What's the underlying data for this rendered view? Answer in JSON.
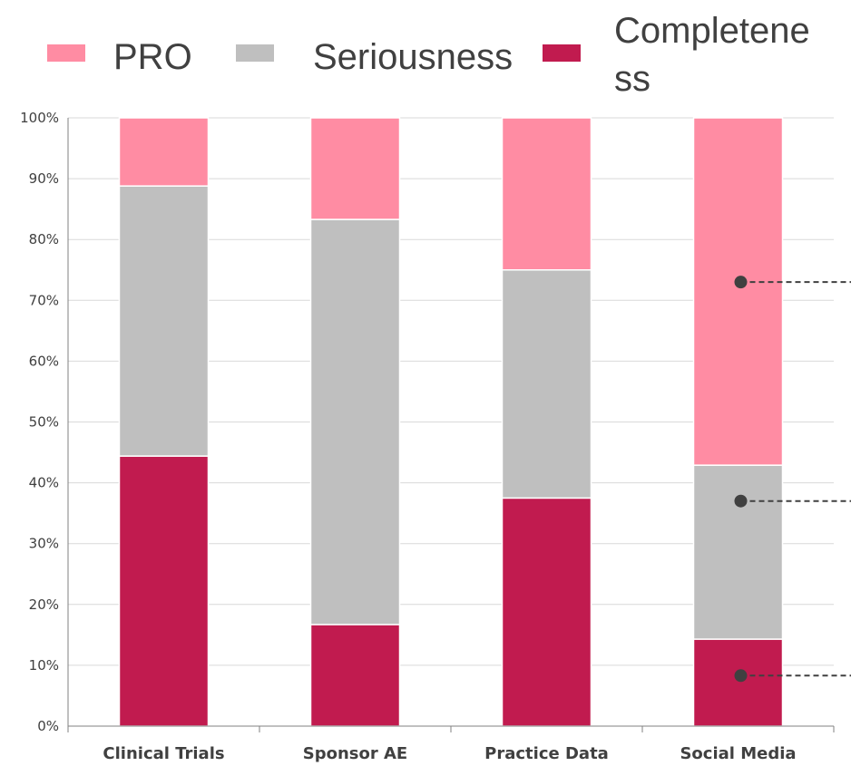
{
  "chart_data": {
    "type": "bar",
    "stacked": "percent",
    "categories": [
      "Clinical Trials",
      "Sponsor AE",
      "Practice Data",
      "Social Media"
    ],
    "series": [
      {
        "name": "Completeness",
        "color": "#c11b4f",
        "values": [
          44.4,
          16.7,
          37.5,
          14.3
        ]
      },
      {
        "name": "Seriousness",
        "color": "#bfbfbf",
        "values": [
          44.4,
          66.6,
          37.5,
          28.6
        ]
      },
      {
        "name": "PRO",
        "color": "#ff8ca3",
        "values": [
          11.2,
          16.7,
          25.0,
          57.1
        ]
      }
    ],
    "y_ticks": [
      "0%",
      "10%",
      "20%",
      "30%",
      "40%",
      "50%",
      "60%",
      "70%",
      "80%",
      "90%",
      "100%"
    ],
    "ylim": [
      0,
      100
    ],
    "grid": true,
    "legend_position": "top",
    "legend": [
      {
        "label": "PRO",
        "color": "#ff8ca3"
      },
      {
        "label": "Seriousness",
        "color": "#bfbfbf"
      },
      {
        "label": "Completene\nss",
        "color": "#c11b4f"
      }
    ],
    "callouts": [
      {
        "category": "Social Media",
        "value": 73
      },
      {
        "category": "Social Media",
        "value": 37
      },
      {
        "category": "Social Media",
        "value": 8.3
      }
    ]
  }
}
